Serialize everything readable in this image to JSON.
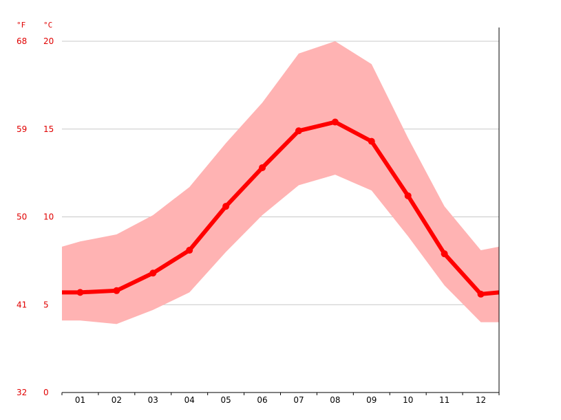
{
  "chart_data": {
    "type": "line",
    "units": {
      "fahrenheit": "°F",
      "celsius": "°C"
    },
    "categories": [
      "01",
      "02",
      "03",
      "04",
      "05",
      "06",
      "07",
      "08",
      "09",
      "10",
      "11",
      "12"
    ],
    "y_celsius_ticks": [
      "0",
      "5",
      "10",
      "15",
      "20"
    ],
    "y_fahrenheit_ticks": [
      "32",
      "41",
      "50",
      "59",
      "68"
    ],
    "ylim_celsius": [
      0,
      20
    ],
    "grid": true,
    "series": [
      {
        "role": "mean",
        "values": [
          5.7,
          5.8,
          6.8,
          8.1,
          10.6,
          12.8,
          14.9,
          15.4,
          14.3,
          11.2,
          7.9,
          5.6
        ]
      },
      {
        "role": "max",
        "values": [
          8.6,
          9.0,
          10.1,
          11.7,
          14.2,
          16.5,
          19.3,
          20.0,
          18.7,
          14.5,
          10.6,
          8.1
        ]
      },
      {
        "role": "min",
        "values": [
          4.1,
          3.9,
          4.7,
          5.7,
          8.0,
          10.1,
          11.8,
          12.4,
          11.5,
          8.9,
          6.1,
          4.0
        ]
      }
    ],
    "extended": {
      "first": {
        "mean": 5.7,
        "max": 8.3,
        "min": 4.1
      },
      "last": {
        "mean": 5.7,
        "max": 8.3,
        "min": 4.0
      }
    },
    "colors": {
      "line": "#ff0000",
      "band": "#ffb3b3",
      "grid": "#c8c8c8",
      "labels": "#e00000",
      "axis": "#000000"
    }
  }
}
